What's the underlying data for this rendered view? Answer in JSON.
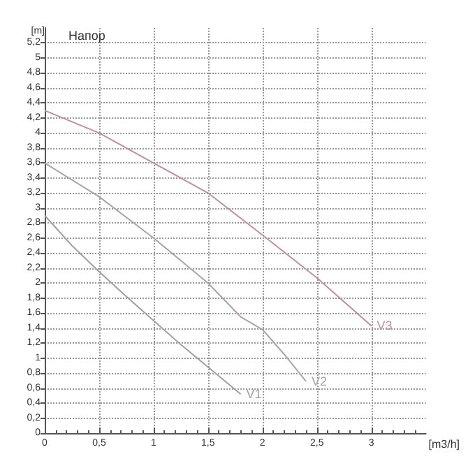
{
  "chart_data": {
    "type": "line",
    "title": "Напор",
    "xlabel": "[m3/h]",
    "ylabel": "[m]",
    "xlim": [
      0,
      3.5
    ],
    "ylim": [
      0,
      5.4
    ],
    "xticks": [
      0,
      {
        "value": 0.5,
        "label": "0,5"
      },
      1,
      {
        "value": 1.5,
        "label": "1,5"
      },
      2,
      {
        "value": 2.5,
        "label": "2,5"
      },
      3
    ],
    "yticks": [
      0,
      {
        "value": 0.2,
        "label": "0,2"
      },
      {
        "value": 0.4,
        "label": "0,4"
      },
      {
        "value": 0.6,
        "label": "0,6"
      },
      {
        "value": 0.8,
        "label": "0,8"
      },
      1,
      {
        "value": 1.2,
        "label": "1,2"
      },
      {
        "value": 1.4,
        "label": "1,4"
      },
      {
        "value": 1.6,
        "label": "1,6"
      },
      {
        "value": 1.8,
        "label": "1,8"
      },
      2,
      {
        "value": 2.2,
        "label": "2,2"
      },
      {
        "value": 2.4,
        "label": "2,4"
      },
      {
        "value": 2.6,
        "label": "2,6"
      },
      {
        "value": 2.8,
        "label": "2,8"
      },
      3,
      {
        "value": 3.2,
        "label": "3,2"
      },
      {
        "value": 3.4,
        "label": "3,4"
      },
      {
        "value": 3.6,
        "label": "3,6"
      },
      {
        "value": 3.8,
        "label": "3,8"
      },
      4,
      {
        "value": 4.2,
        "label": "4,2"
      },
      {
        "value": 4.4,
        "label": "4,4"
      },
      {
        "value": 4.6,
        "label": "4,6"
      },
      {
        "value": 4.8,
        "label": "4,8"
      },
      5,
      {
        "value": 5.2,
        "label": "5,2"
      }
    ],
    "grid": true,
    "legend": false,
    "marker": "none",
    "line_style": "solid",
    "series": [
      {
        "name": "V1",
        "color": "#a0a0a0",
        "x": [
          0,
          0.25,
          0.5,
          0.75,
          1,
          1.25,
          1.5,
          1.8
        ],
        "values": [
          2.9,
          2.5,
          2.15,
          1.82,
          1.5,
          1.18,
          0.88,
          0.52
        ]
      },
      {
        "name": "V2",
        "color": "#b0a0a8",
        "x": [
          0,
          0.5,
          1,
          1.5,
          1.8,
          2,
          2.2,
          2.4
        ],
        "values": [
          3.6,
          3.15,
          2.6,
          2.0,
          1.55,
          1.38,
          1.05,
          0.69
        ]
      },
      {
        "name": "V3",
        "color": "#c0909c",
        "x": [
          0,
          0.5,
          1,
          1.5,
          2,
          2.5,
          3
        ],
        "values": [
          4.3,
          4.0,
          3.6,
          3.2,
          2.64,
          2.07,
          1.43
        ]
      }
    ]
  }
}
